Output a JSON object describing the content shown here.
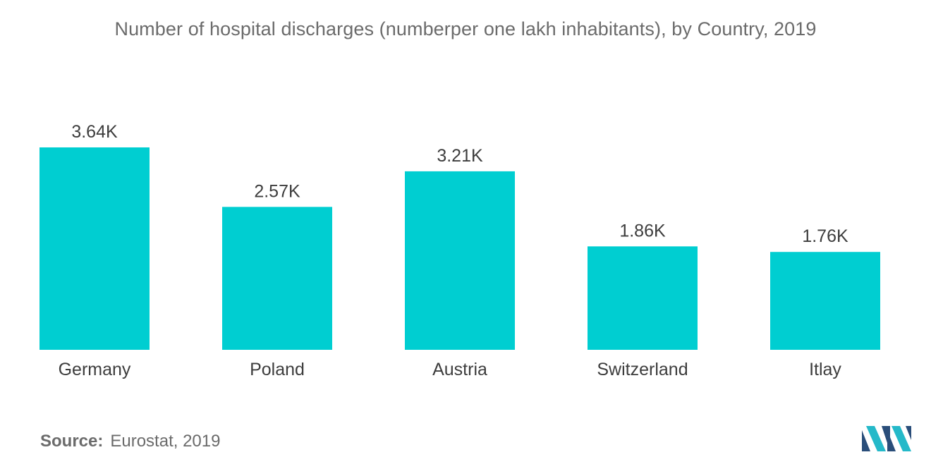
{
  "chart_data": {
    "type": "bar",
    "title": "Number of hospital discharges (numberper one lakh inhabitants), by Country, 2019",
    "categories": [
      "Germany",
      "Poland",
      "Austria",
      "Switzerland",
      "Itlay"
    ],
    "values": [
      3640,
      2570,
      3210,
      1860,
      1760
    ],
    "data_labels": [
      "3.64K",
      "2.57K",
      "3.21K",
      "1.86K",
      "1.76K"
    ],
    "xlabel": "",
    "ylabel": "",
    "ylim": [
      0,
      3640
    ],
    "grid": false,
    "legend": "none",
    "colors": {
      "bar": "#00ced1"
    }
  },
  "source": {
    "label": "Source:",
    "text": "Eurostat, 2019"
  },
  "logo": {
    "icon": "mordor-intelligence-logo",
    "colors": [
      "#2a4e7a",
      "#25b9c9"
    ]
  }
}
